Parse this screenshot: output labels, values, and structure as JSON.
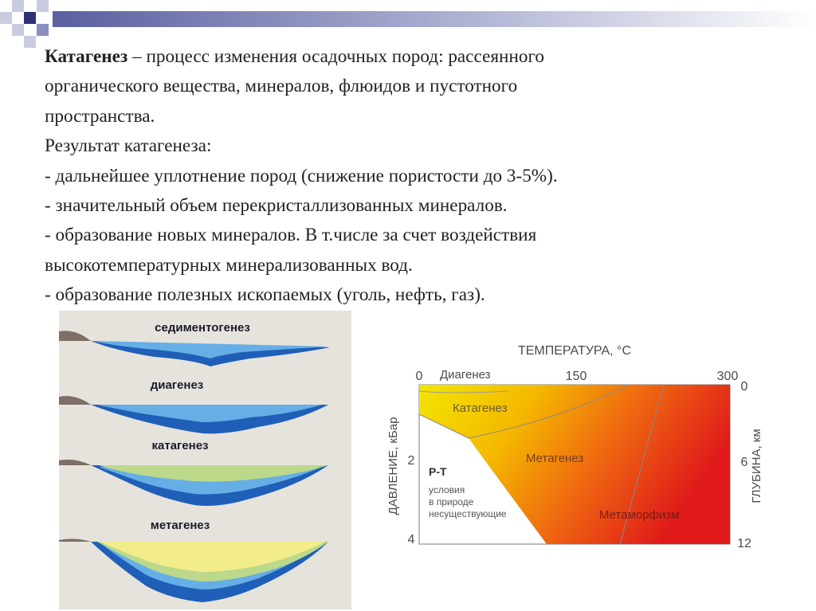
{
  "text": {
    "term": "Катагенез",
    "definition": " – процесс изменения осадочных пород: рассеянного",
    "definition_line2": "органического вещества, минералов, флюидов и пустотного",
    "definition_line3": "пространства.",
    "result_heading": "Результат катагенеза:",
    "bullets": [
      "- дальнейшее уплотнение пород (снижение пористости до 3-5%).",
      "- значительный объем перекристаллизованных минералов.",
      "- образование новых минералов. В т.числе за счет воздействия",
      "высокотемпературных минерализованных вод.",
      "- образование полезных ископаемых (уголь, нефть, газ)."
    ]
  },
  "stages": {
    "sedimentogenesis": "седиментогенез",
    "diagenesis": "диагенез",
    "catagenesis": "катагенез",
    "metagenesis": "метагенез"
  },
  "pt_diagram": {
    "temperature_title": "ТЕМПЕРАТУРА, °C",
    "temp_ticks": [
      "0",
      "150",
      "300"
    ],
    "pressure_label": "ДАВЛЕНИЕ, кБар",
    "pressure_ticks": [
      "2",
      "4"
    ],
    "depth_label": "ГЛУБИНА, км",
    "depth_ticks": [
      "0",
      "6",
      "12"
    ],
    "zones": {
      "diagenesis": "Диагенез",
      "catagenesis": "Катагенез",
      "metagenesis": "Метагенез",
      "metamorphism": "Метаморфизм"
    },
    "pt_title": "P-T",
    "pt_note": [
      "условия",
      "в природе",
      "несуществующие"
    ]
  },
  "colors": {
    "water_dark": "#1f5fb8",
    "water_light": "#66aee6",
    "sediment_green": "#bcd98a",
    "sediment_yellow": "#f2ec8a",
    "panel_bg": "#e6e3dc",
    "pt_yellow": "#f2e600",
    "pt_red": "#e01a1a"
  }
}
